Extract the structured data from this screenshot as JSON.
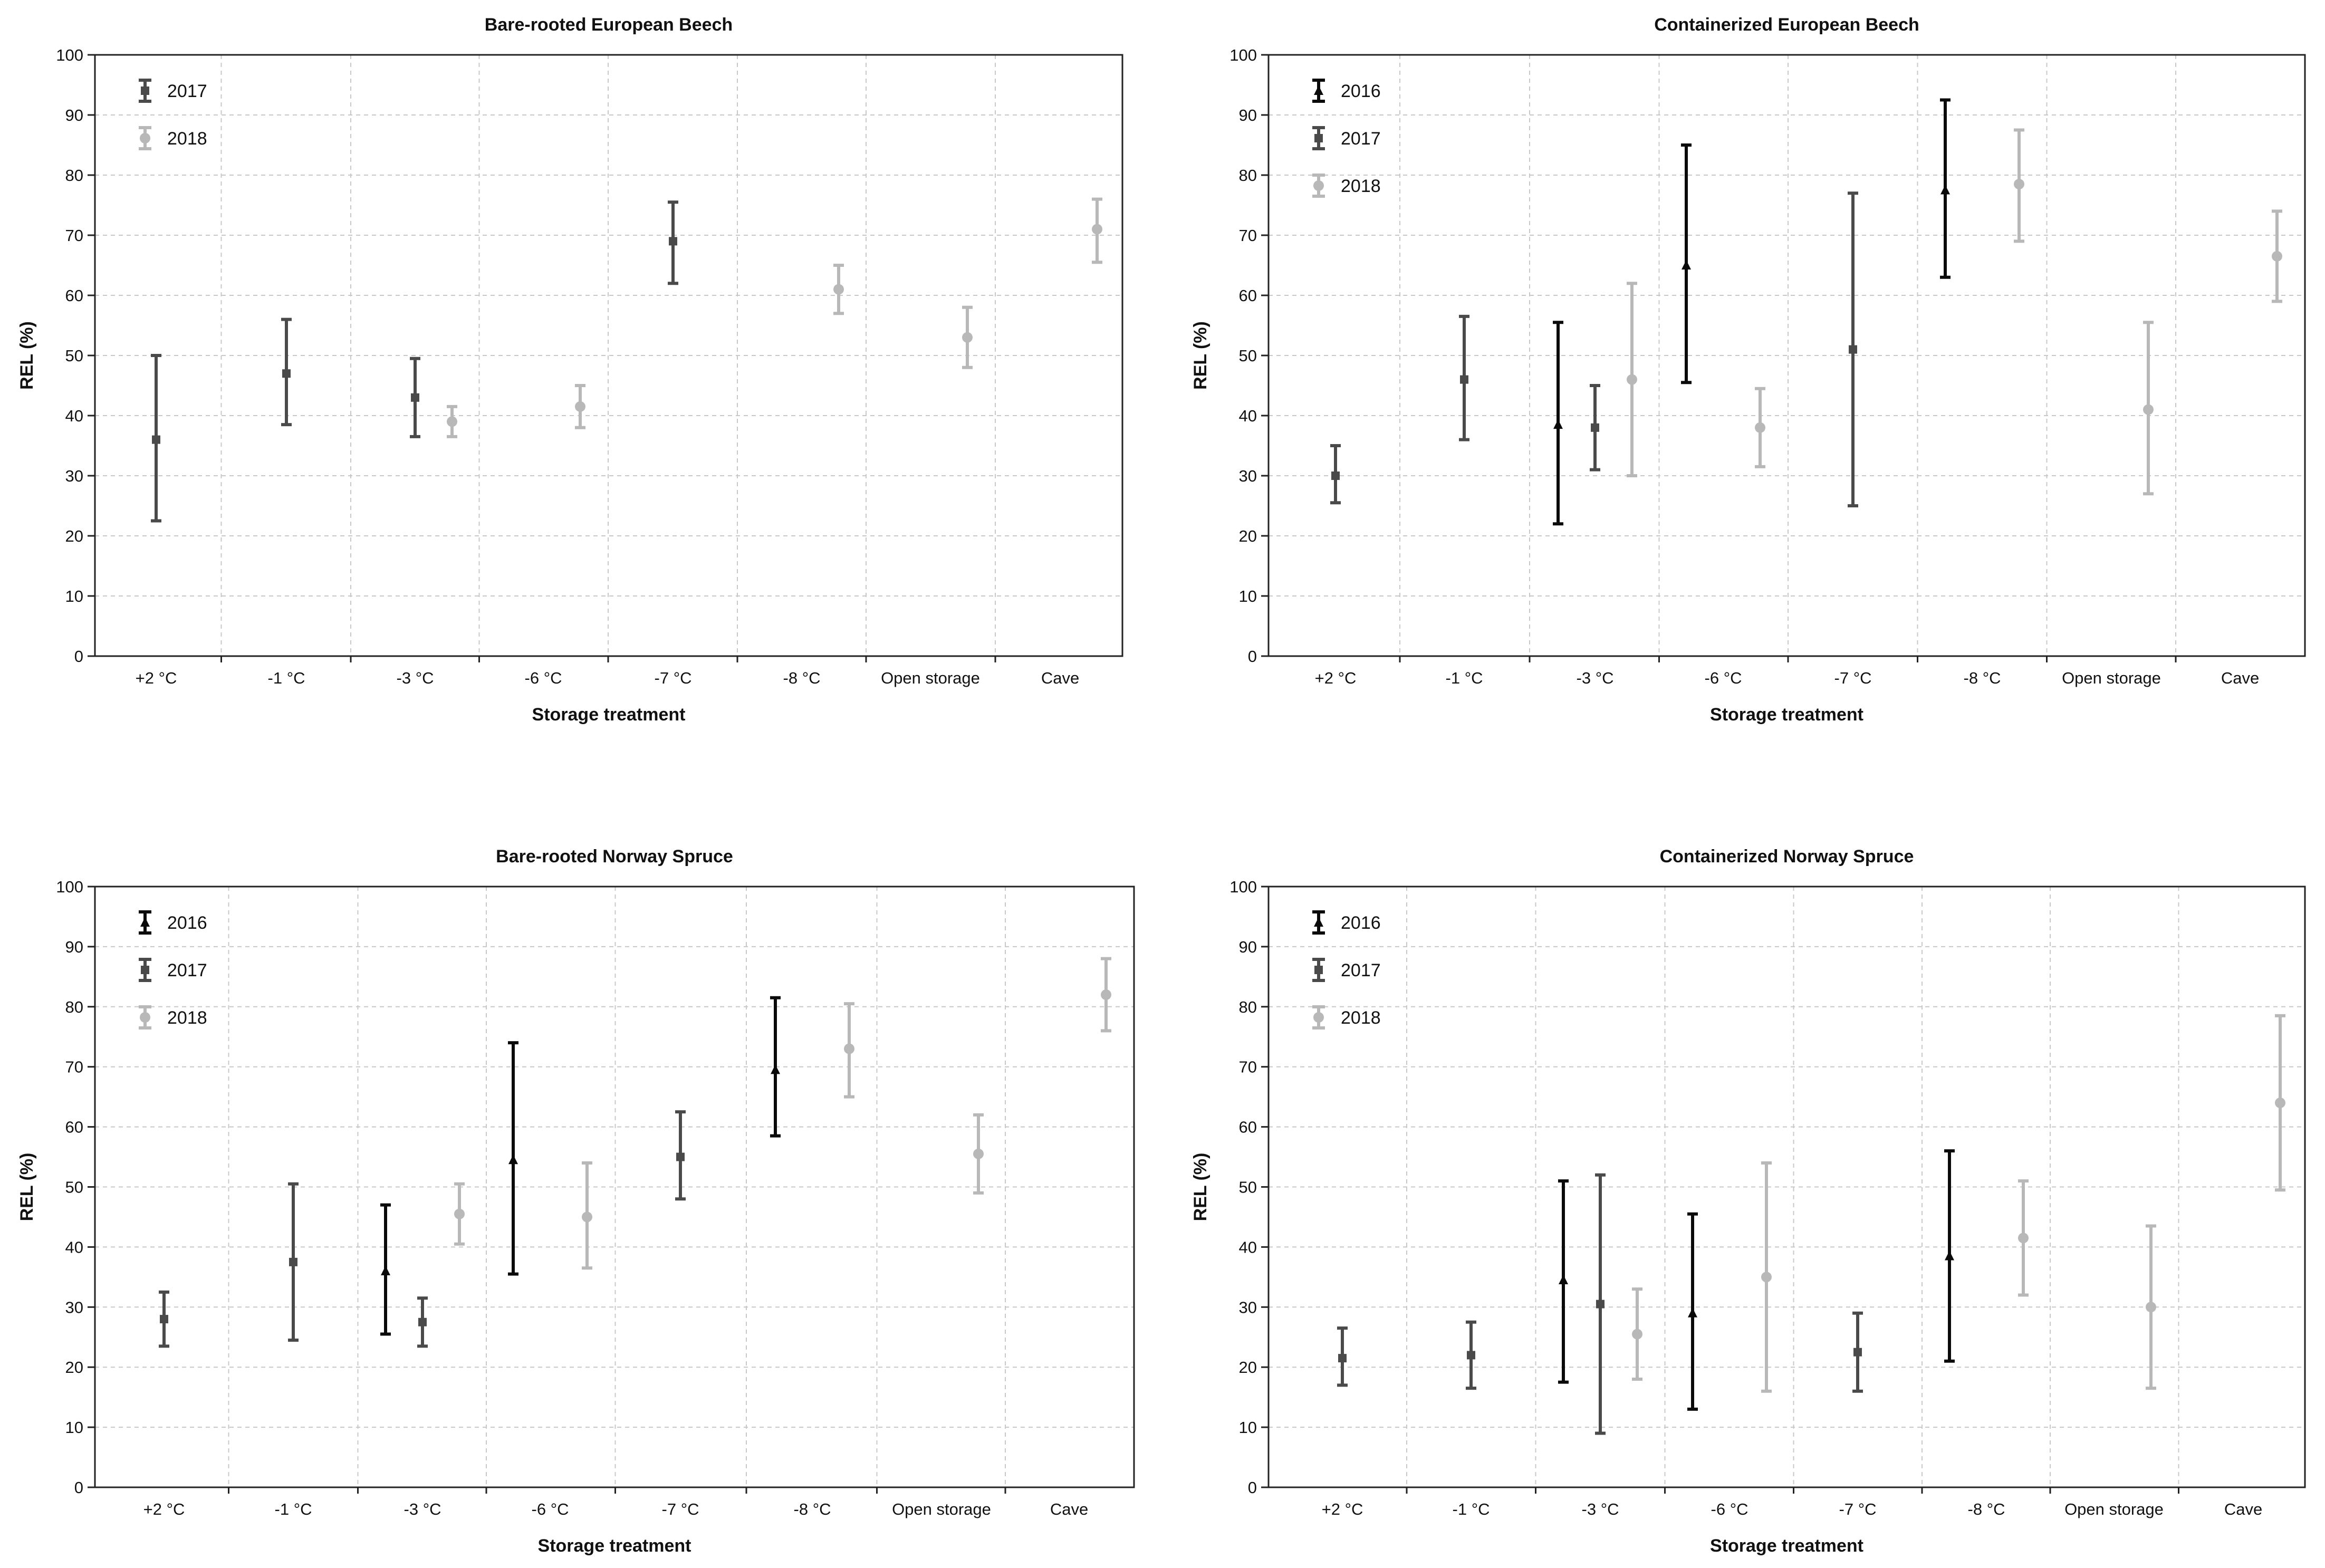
{
  "series_styles": {
    "2016": {
      "color": "#0a0a0a",
      "marker": "triangle"
    },
    "2017": {
      "color": "#4a4a4a",
      "marker": "square"
    },
    "2018": {
      "color": "#b8b8b8",
      "marker": "circle"
    }
  },
  "chart_data": [
    {
      "type": "errorbar",
      "title": "Bare-rooted European Beech",
      "xlabel": "Storage treatment",
      "ylabel": "REL (%)",
      "ylim": [
        0,
        100
      ],
      "yticks": [
        "0",
        "10",
        "20",
        "30",
        "40",
        "50",
        "60",
        "70",
        "80",
        "90",
        "100"
      ],
      "categories": [
        "+2 °C",
        "-1 °C",
        "-3 °C",
        "-6 °C",
        "-7 °C",
        "-8 °C",
        "Open storage",
        "Cave"
      ],
      "legend": [
        "2017",
        "2018"
      ],
      "legend_position": "top-left",
      "grid": true,
      "points": [
        {
          "series": "2017",
          "category": "+2 °C",
          "value": 36,
          "low": 22.5,
          "high": 50
        },
        {
          "series": "2017",
          "category": "-1 °C",
          "value": 47,
          "low": 38.5,
          "high": 56
        },
        {
          "series": "2017",
          "category": "-3 °C",
          "value": 43,
          "low": 36.5,
          "high": 49.5
        },
        {
          "series": "2018",
          "category": "-3 °C",
          "value": 39,
          "low": 36.5,
          "high": 41.5
        },
        {
          "series": "2018",
          "category": "-6 °C",
          "value": 41.5,
          "low": 38,
          "high": 45
        },
        {
          "series": "2017",
          "category": "-7 °C",
          "value": 69,
          "low": 62,
          "high": 75.5
        },
        {
          "series": "2018",
          "category": "-8 °C",
          "value": 61,
          "low": 57,
          "high": 65
        },
        {
          "series": "2018",
          "category": "Open storage",
          "value": 53,
          "low": 48,
          "high": 58
        },
        {
          "series": "2018",
          "category": "Cave",
          "value": 71,
          "low": 65.5,
          "high": 76
        }
      ]
    },
    {
      "type": "errorbar",
      "title": "Containerized European Beech",
      "xlabel": "Storage treatment",
      "ylabel": "REL (%)",
      "ylim": [
        0,
        100
      ],
      "yticks": [
        "0",
        "10",
        "20",
        "30",
        "40",
        "50",
        "60",
        "70",
        "80",
        "90",
        "100"
      ],
      "categories": [
        "+2 °C",
        "-1 °C",
        "-3 °C",
        "-6 °C",
        "-7 °C",
        "-8 °C",
        "Open storage",
        "Cave"
      ],
      "legend": [
        "2016",
        "2017",
        "2018"
      ],
      "legend_position": "top-left",
      "grid": true,
      "points": [
        {
          "series": "2017",
          "category": "+2 °C",
          "value": 30,
          "low": 25.5,
          "high": 35
        },
        {
          "series": "2017",
          "category": "-1 °C",
          "value": 46,
          "low": 36,
          "high": 56.5
        },
        {
          "series": "2016",
          "category": "-3 °C",
          "value": 38.5,
          "low": 22,
          "high": 55.5
        },
        {
          "series": "2017",
          "category": "-3 °C",
          "value": 38,
          "low": 31,
          "high": 45
        },
        {
          "series": "2018",
          "category": "-3 °C",
          "value": 46,
          "low": 30,
          "high": 62
        },
        {
          "series": "2016",
          "category": "-6 °C",
          "value": 65,
          "low": 45.5,
          "high": 85
        },
        {
          "series": "2018",
          "category": "-6 °C",
          "value": 38,
          "low": 31.5,
          "high": 44.5
        },
        {
          "series": "2017",
          "category": "-7 °C",
          "value": 51,
          "low": 25,
          "high": 77
        },
        {
          "series": "2016",
          "category": "-8 °C",
          "value": 77.5,
          "low": 63,
          "high": 92.5
        },
        {
          "series": "2018",
          "category": "-8 °C",
          "value": 78.5,
          "low": 69,
          "high": 87.5
        },
        {
          "series": "2018",
          "category": "Open storage",
          "value": 41,
          "low": 27,
          "high": 55.5
        },
        {
          "series": "2018",
          "category": "Cave",
          "value": 66.5,
          "low": 59,
          "high": 74
        }
      ]
    },
    {
      "type": "errorbar",
      "title": "Bare-rooted Norway Spruce",
      "xlabel": "Storage treatment",
      "ylabel": "REL (%)",
      "ylim": [
        0,
        100
      ],
      "yticks": [
        "0",
        "10",
        "20",
        "30",
        "40",
        "50",
        "60",
        "70",
        "80",
        "90",
        "100"
      ],
      "categories": [
        "+2 °C",
        "-1 °C",
        "-3 °C",
        "-6 °C",
        "-7 °C",
        "-8 °C",
        "Open storage",
        "Cave"
      ],
      "legend": [
        "2016",
        "2017",
        "2018"
      ],
      "legend_position": "top-left",
      "grid": true,
      "points": [
        {
          "series": "2017",
          "category": "+2 °C",
          "value": 28,
          "low": 23.5,
          "high": 32.5
        },
        {
          "series": "2017",
          "category": "-1 °C",
          "value": 37.5,
          "low": 24.5,
          "high": 50.5
        },
        {
          "series": "2016",
          "category": "-3 °C",
          "value": 36,
          "low": 25.5,
          "high": 47
        },
        {
          "series": "2017",
          "category": "-3 °C",
          "value": 27.5,
          "low": 23.5,
          "high": 31.5
        },
        {
          "series": "2018",
          "category": "-3 °C",
          "value": 45.5,
          "low": 40.5,
          "high": 50.5
        },
        {
          "series": "2016",
          "category": "-6 °C",
          "value": 54.5,
          "low": 35.5,
          "high": 74
        },
        {
          "series": "2018",
          "category": "-6 °C",
          "value": 45,
          "low": 36.5,
          "high": 54
        },
        {
          "series": "2017",
          "category": "-7 °C",
          "value": 55,
          "low": 48,
          "high": 62.5
        },
        {
          "series": "2016",
          "category": "-8 °C",
          "value": 69.5,
          "low": 58.5,
          "high": 81.5
        },
        {
          "series": "2018",
          "category": "-8 °C",
          "value": 73,
          "low": 65,
          "high": 80.5
        },
        {
          "series": "2018",
          "category": "Open storage",
          "value": 55.5,
          "low": 49,
          "high": 62
        },
        {
          "series": "2018",
          "category": "Cave",
          "value": 82,
          "low": 76,
          "high": 88
        }
      ]
    },
    {
      "type": "errorbar",
      "title": "Containerized Norway Spruce",
      "xlabel": "Storage treatment",
      "ylabel": "REL (%)",
      "ylim": [
        0,
        100
      ],
      "yticks": [
        "0",
        "10",
        "20",
        "30",
        "40",
        "50",
        "60",
        "70",
        "80",
        "90",
        "100"
      ],
      "categories": [
        "+2 °C",
        "-1 °C",
        "-3 °C",
        "-6 °C",
        "-7 °C",
        "-8 °C",
        "Open storage",
        "Cave"
      ],
      "legend": [
        "2016",
        "2017",
        "2018"
      ],
      "legend_position": "top-left",
      "grid": true,
      "points": [
        {
          "series": "2017",
          "category": "+2 °C",
          "value": 21.5,
          "low": 17,
          "high": 26.5
        },
        {
          "series": "2017",
          "category": "-1 °C",
          "value": 22,
          "low": 16.5,
          "high": 27.5
        },
        {
          "series": "2016",
          "category": "-3 °C",
          "value": 34.5,
          "low": 17.5,
          "high": 51
        },
        {
          "series": "2017",
          "category": "-3 °C",
          "value": 30.5,
          "low": 9,
          "high": 52
        },
        {
          "series": "2018",
          "category": "-3 °C",
          "value": 25.5,
          "low": 18,
          "high": 33
        },
        {
          "series": "2016",
          "category": "-6 °C",
          "value": 29,
          "low": 13,
          "high": 45.5
        },
        {
          "series": "2018",
          "category": "-6 °C",
          "value": 35,
          "low": 16,
          "high": 54
        },
        {
          "series": "2017",
          "category": "-7 °C",
          "value": 22.5,
          "low": 16,
          "high": 29
        },
        {
          "series": "2016",
          "category": "-8 °C",
          "value": 38.5,
          "low": 21,
          "high": 56
        },
        {
          "series": "2018",
          "category": "-8 °C",
          "value": 41.5,
          "low": 32,
          "high": 51
        },
        {
          "series": "2018",
          "category": "Open storage",
          "value": 30,
          "low": 16.5,
          "high": 43.5
        },
        {
          "series": "2018",
          "category": "Cave",
          "value": 64,
          "low": 49.5,
          "high": 78.5
        }
      ]
    }
  ]
}
